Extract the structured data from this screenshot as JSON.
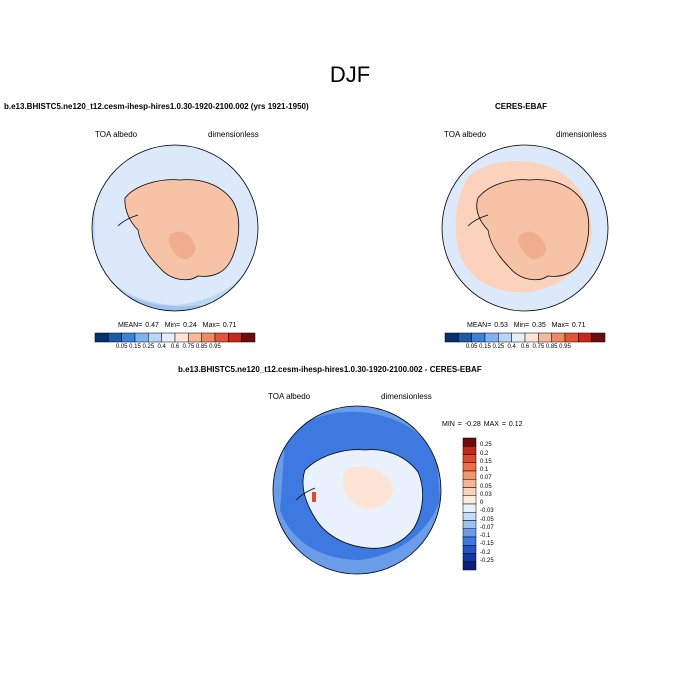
{
  "figure": {
    "title": "DJF"
  },
  "panels": [
    {
      "title": "b.e13.BHISTC5.ne120_t12.cesm-ihesp-hires1.0.30-1920-2100.002 (yrs 1921-1950)",
      "left_label": "TOA albedo",
      "right_label": "dimensionless",
      "stats": {
        "mean_label": "MEAN=",
        "mean": "0.47",
        "min_label": "Min=",
        "min": "0.24",
        "max_label": "Max=",
        "max": "0.71"
      }
    },
    {
      "title": "CERES-EBAF",
      "left_label": "TOA albedo",
      "right_label": "dimensionless",
      "stats": {
        "mean_label": "MEAN=",
        "mean": "0.53",
        "min_label": "Min=",
        "min": "0.35",
        "max_label": "Max=",
        "max": "0.71"
      }
    },
    {
      "title": "b.e13.BHISTC5.ne120_t12.cesm-ihesp-hires1.0.30-1920-2100.002 - CERES-EBAF",
      "left_label": "TOA albedo",
      "right_label": "dimensionless",
      "stats": {
        "min_label": "MIN =",
        "min": "-0.28",
        "max_label": "MAX =",
        "max": "0.12"
      }
    }
  ],
  "chart_data": [
    {
      "type": "heatmap",
      "projection": "south-polar-stereographic",
      "title": "b.e13.BHISTC5.ne120_t12.cesm-ihesp-hires1.0.30-1920-2100.002 (yrs 1921-1950)",
      "variable": "TOA albedo",
      "units": "dimensionless",
      "mean": 0.47,
      "min": 0.24,
      "max": 0.71,
      "colorbar_levels": [
        0.05,
        0.15,
        0.25,
        0.4,
        0.6,
        0.75,
        0.85,
        0.95
      ],
      "colorbar_tick_labels": [
        "0.05",
        "0.15",
        "0.25",
        "0.4",
        "0.6",
        "0.75",
        "0.85",
        "0.95"
      ],
      "colorbar_colors": [
        "#08306b",
        "#1c5aa6",
        "#3b83d8",
        "#7fb2f0",
        "#b9d6f8",
        "#e3effc",
        "#fde4d6",
        "#f6b99b",
        "#ee8a62",
        "#e05533",
        "#c4281a",
        "#6e0c0c"
      ]
    },
    {
      "type": "heatmap",
      "projection": "south-polar-stereographic",
      "title": "CERES-EBAF",
      "variable": "TOA albedo",
      "units": "dimensionless",
      "mean": 0.53,
      "min": 0.35,
      "max": 0.71,
      "colorbar_levels": [
        0.05,
        0.15,
        0.25,
        0.4,
        0.6,
        0.75,
        0.85,
        0.95
      ],
      "colorbar_tick_labels": [
        "0.05",
        "0.15",
        "0.25",
        "0.4",
        "0.6",
        "0.75",
        "0.85",
        "0.95"
      ],
      "colorbar_colors": [
        "#08306b",
        "#1c5aa6",
        "#3b83d8",
        "#7fb2f0",
        "#b9d6f8",
        "#e3effc",
        "#fde4d6",
        "#f6b99b",
        "#ee8a62",
        "#e05533",
        "#c4281a",
        "#6e0c0c"
      ]
    },
    {
      "type": "heatmap",
      "projection": "south-polar-stereographic",
      "title": "b.e13.BHISTC5.ne120_t12.cesm-ihesp-hires1.0.30-1920-2100.002 - CERES-EBAF",
      "variable": "TOA albedo",
      "units": "dimensionless",
      "min": -0.28,
      "max": 0.12,
      "colorbar_levels": [
        0.25,
        0.2,
        0.15,
        0.1,
        0.07,
        0.05,
        0.03,
        0,
        -0.03,
        -0.05,
        -0.07,
        -0.1,
        -0.15,
        -0.2,
        -0.25
      ],
      "colorbar_tick_labels": [
        "0.25",
        "0.2",
        "0.15",
        "0.1",
        "0.07",
        "0.05",
        "0.03",
        "0",
        "-0.03",
        "-0.05",
        "-0.07",
        "-0.1",
        "-0.15",
        "-0.2",
        "-0.25"
      ],
      "colorbar_colors": [
        "#6e0c0c",
        "#c4281a",
        "#e04a2c",
        "#ef7048",
        "#f4956e",
        "#f8b595",
        "#fbd3bd",
        "#fdebdf",
        "#e8f1fc",
        "#c6dcf8",
        "#9cc0f2",
        "#6a9cea",
        "#3d79e0",
        "#1f55c8",
        "#1238a0",
        "#0a1f78"
      ]
    }
  ],
  "colors": {
    "ice_high": "#f6c3a6",
    "ice_mid": "#efad8e",
    "ocean_light": "#dbe9fb",
    "ocean_mid": "#bcd6f5"
  }
}
